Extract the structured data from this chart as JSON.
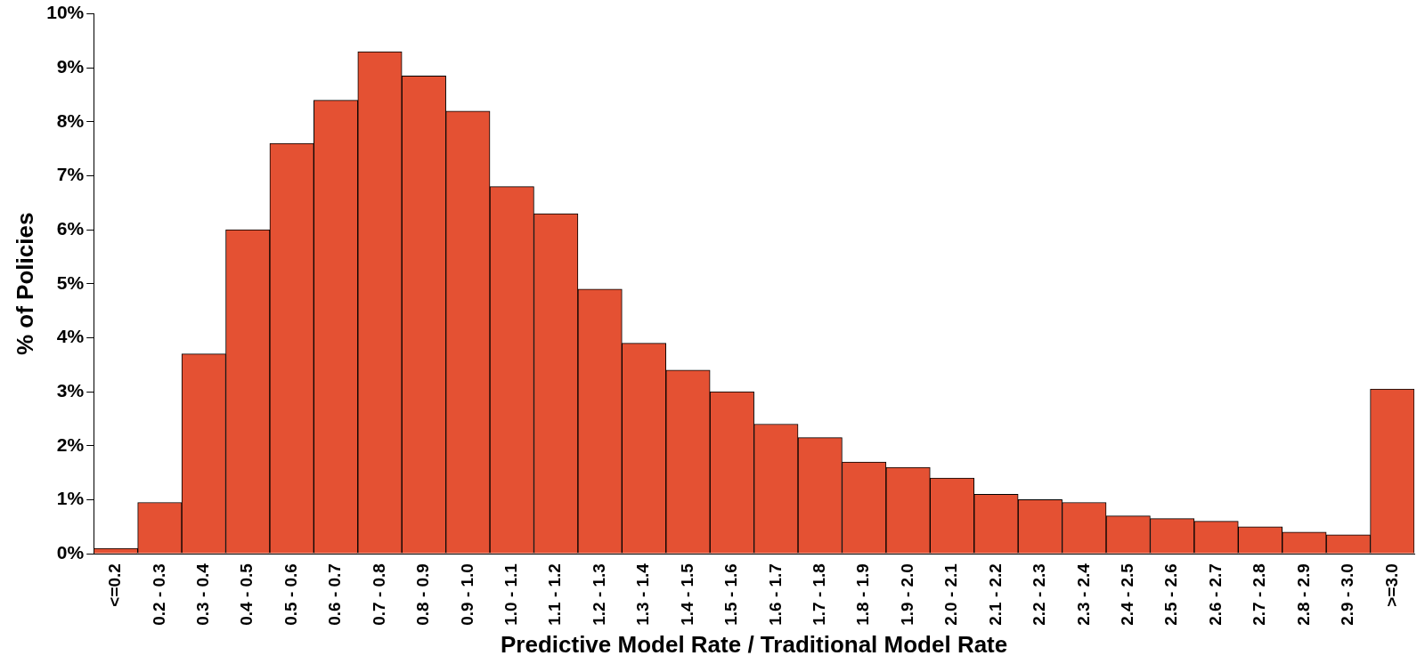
{
  "chart_data": {
    "type": "bar",
    "xlabel": "Predictive Model Rate / Traditional Model Rate",
    "ylabel": "% of Policies",
    "categories": [
      "<=0.2",
      "0.2 - 0.3",
      "0.3 - 0.4",
      "0.4 - 0.5",
      "0.5 - 0.6",
      "0.6 - 0.7",
      "0.7 - 0.8",
      "0.8 - 0.9",
      "0.9 - 1.0",
      "1.0 - 1.1",
      "1.1 - 1.2",
      "1.2 - 1.3",
      "1.3 - 1.4",
      "1.4 - 1.5",
      "1.5 - 1.6",
      "1.6 - 1.7",
      "1.7 - 1.8",
      "1.8 - 1.9",
      "1.9 - 2.0",
      "2.0 - 2.1",
      "2.1 - 2.2",
      "2.2 - 2.3",
      "2.3 - 2.4",
      "2.4 - 2.5",
      "2.5 - 2.6",
      "2.6 - 2.7",
      "2.7 - 2.8",
      "2.8 - 2.9",
      "2.9 - 3.0",
      ">=3.0"
    ],
    "values": [
      0.1,
      0.95,
      3.7,
      6.0,
      7.6,
      8.4,
      9.3,
      8.85,
      8.2,
      6.8,
      6.3,
      4.9,
      3.9,
      3.4,
      3.0,
      2.4,
      2.15,
      1.7,
      1.6,
      1.4,
      1.1,
      1.0,
      0.95,
      0.7,
      0.65,
      0.6,
      0.5,
      0.4,
      0.35,
      3.05
    ],
    "color": "#e45133",
    "ylim": [
      0,
      10
    ],
    "yticks": [
      {
        "value": 0,
        "label": "0%"
      },
      {
        "value": 1,
        "label": "1%"
      },
      {
        "value": 2,
        "label": "2%"
      },
      {
        "value": 3,
        "label": "3%"
      },
      {
        "value": 4,
        "label": "4%"
      },
      {
        "value": 5,
        "label": "5%"
      },
      {
        "value": 6,
        "label": "6%"
      },
      {
        "value": 7,
        "label": "7%"
      },
      {
        "value": 8,
        "label": "8%"
      },
      {
        "value": 9,
        "label": "9%"
      },
      {
        "value": 10,
        "label": "10%"
      }
    ],
    "grid": false,
    "legend": false
  }
}
